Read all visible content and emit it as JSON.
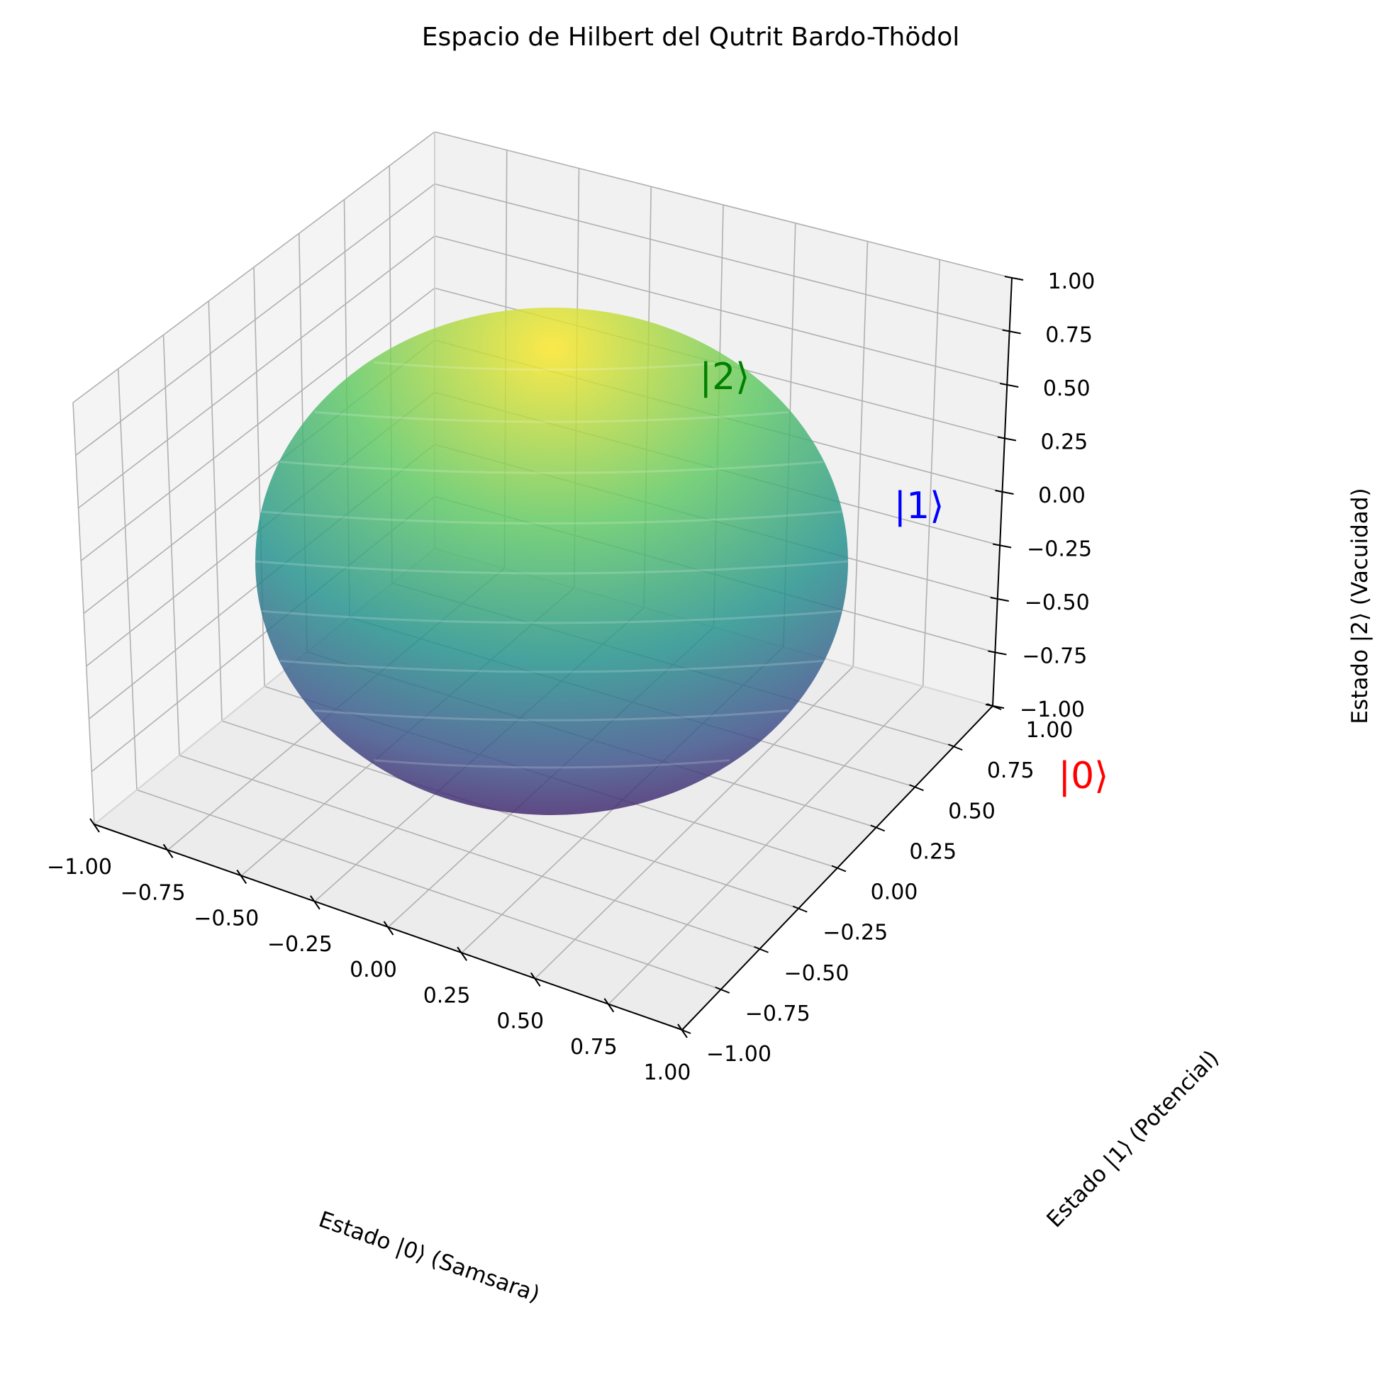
{
  "chart_data": {
    "type": "surface3d",
    "title": "Espacio de Hilbert del Qutrit Bardo-Thödol",
    "xlabel": "Estado |0⟩ (Samsara)",
    "ylabel": "Estado |1⟩ (Potencial)",
    "zlabel": "Estado |2⟩ (Vacuidad)",
    "xlim": [
      -1.0,
      1.0
    ],
    "ylim": [
      -1.0,
      1.0
    ],
    "zlim": [
      -1.0,
      1.0
    ],
    "x_ticks": [
      "−1.00",
      "−0.75",
      "−0.50",
      "−0.25",
      "0.00",
      "0.25",
      "0.50",
      "0.75",
      "1.00"
    ],
    "y_ticks": [
      "−1.00",
      "−0.75",
      "−0.50",
      "−0.25",
      "0.00",
      "0.25",
      "0.50",
      "0.75",
      "1.00"
    ],
    "z_ticks": [
      "−1.00",
      "−0.75",
      "−0.50",
      "−0.25",
      "0.00",
      "0.25",
      "0.50",
      "0.75",
      "1.00"
    ],
    "grid": true,
    "surface": {
      "shape": "unit sphere",
      "radius": 1.0,
      "colormap": "viridis",
      "colormap_colors": [
        "#440154",
        "#3b528b",
        "#21918c",
        "#5ec962",
        "#fde725"
      ],
      "alpha": 0.7
    },
    "state_points": [
      {
        "label": "|0⟩",
        "x": 1,
        "y": 0,
        "z": 0,
        "color": "#ff0000"
      },
      {
        "label": "|1⟩",
        "x": 0,
        "y": 1,
        "z": 0,
        "color": "#0000ff"
      },
      {
        "label": "|2⟩",
        "x": 0,
        "y": 0,
        "z": 1,
        "color": "#008000"
      }
    ]
  }
}
